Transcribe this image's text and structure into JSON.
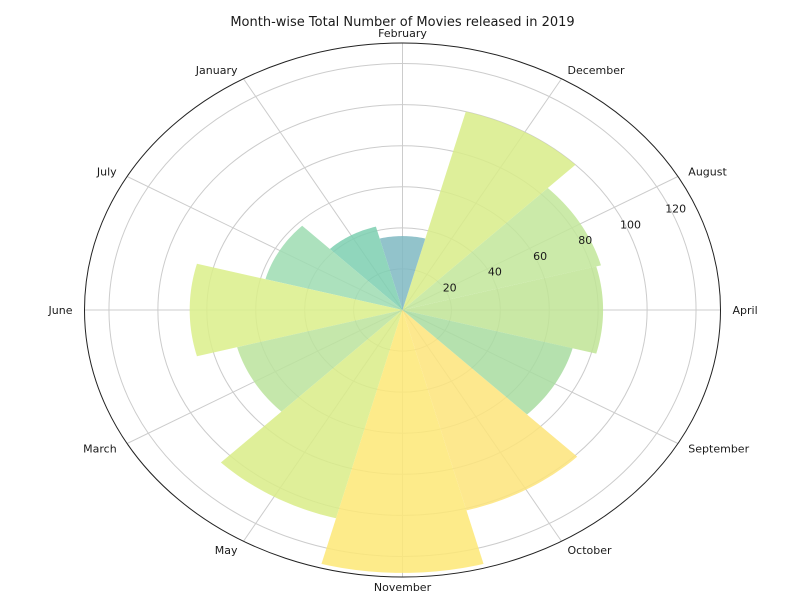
{
  "chart_data": {
    "type": "polar-bar",
    "title": "Month-wise Total Number of Movies released in 2019",
    "categories": [
      "April",
      "August",
      "December",
      "February",
      "January",
      "July",
      "June",
      "March",
      "May",
      "November",
      "October",
      "September"
    ],
    "angle_deg": [
      0,
      30,
      60,
      90,
      120,
      150,
      180,
      210,
      240,
      270,
      300,
      330
    ],
    "values": [
      82,
      84,
      100,
      36,
      42,
      58,
      87,
      70,
      105,
      128,
      101,
      72
    ],
    "bar_colors": [
      "#bfe495",
      "#c2e69a",
      "#d8ec88",
      "#7fb8c2",
      "#7ccfb0",
      "#9edcb2",
      "#dbee8a",
      "#bbe39c",
      "#d9ec87",
      "#fde775",
      "#fde47a",
      "#a8dca0"
    ],
    "radial_ticks": [
      20,
      40,
      60,
      80,
      100,
      120
    ],
    "rmax": 130,
    "grid": true,
    "legend": "none"
  }
}
